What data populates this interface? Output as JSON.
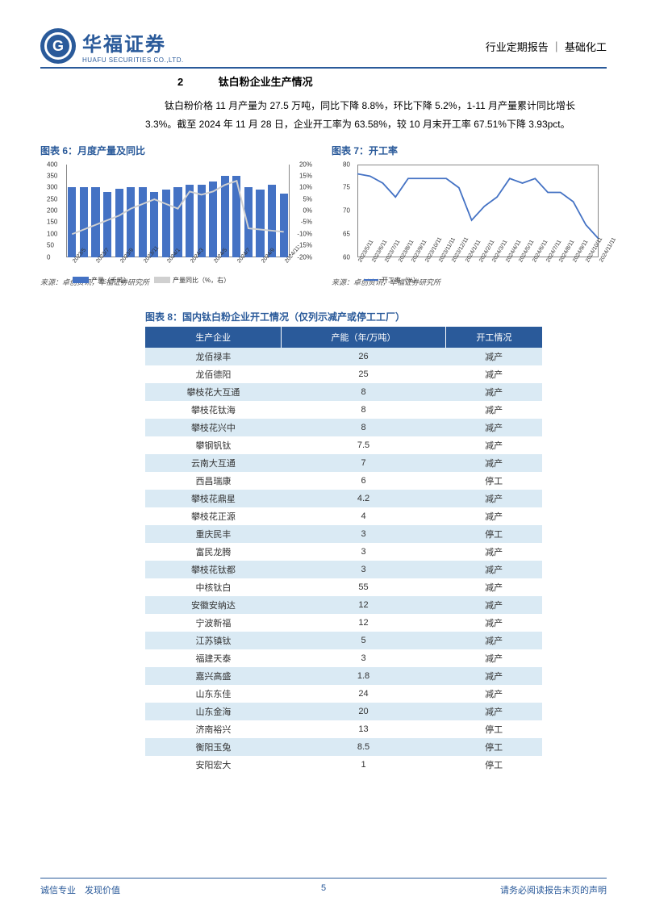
{
  "header": {
    "logo_cn": "华福证券",
    "logo_en": "HUAFU SECURITIES CO.,LTD.",
    "right_text": "行业定期报告 ｜ 基础化工"
  },
  "section": {
    "num": "2",
    "title": "钛白粉企业生产情况"
  },
  "paragraph": "钛白粉价格 11 月产量为 27.5 万吨，同比下降 8.8%，环比下降 5.2%，1-11 月产量累计同比增长 3.3%。截至 2024 年 11 月 28 日，企业开工率为 63.58%，较 10 月末开工率 67.51%下降 3.93pct。",
  "chart6": {
    "title": "图表 6：月度产量及同比",
    "source": "来源：卓创资讯，华福证券研究所",
    "type": "bar+line",
    "bar_color": "#4472c4",
    "line_color": "#d0d0d0",
    "background": "#ffffff",
    "yleft": {
      "min": 0,
      "max": 400,
      "step": 50,
      "ticks": [
        "0",
        "50",
        "100",
        "150",
        "200",
        "250",
        "300",
        "350",
        "400"
      ]
    },
    "yright": {
      "min": -20,
      "max": 20,
      "step": 5,
      "ticks": [
        "-20%",
        "-15%",
        "-10%",
        "-5%",
        "0%",
        "5%",
        "10%",
        "15%",
        "20%"
      ]
    },
    "x_labels": [
      "2023/5",
      "2023/7",
      "2023/9",
      "2023/11",
      "2024/1",
      "2024/3",
      "2024/5",
      "2024/7",
      "2024/9",
      "2024/11"
    ],
    "bars": [
      300,
      300,
      300,
      280,
      295,
      300,
      300,
      280,
      290,
      300,
      310,
      310,
      325,
      350,
      350,
      300,
      290,
      310,
      275
    ],
    "legend": {
      "bar": "产量（千吨）",
      "line": "产量同比（%，右）"
    }
  },
  "chart7": {
    "title": "图表 7：开工率",
    "source": "来源：卓创资讯，华福证券研究所",
    "type": "line",
    "line_color": "#4472c4",
    "background": "#ffffff",
    "y": {
      "min": 60,
      "max": 80,
      "step": 5,
      "ticks": [
        "60",
        "65",
        "70",
        "75",
        "80"
      ]
    },
    "x_labels": [
      "2023/5/11",
      "2023/6/11",
      "2023/7/11",
      "2023/8/11",
      "2023/9/11",
      "2023/10/11",
      "2023/11/11",
      "2023/12/11",
      "2024/1/11",
      "2024/2/11",
      "2024/3/11",
      "2024/4/11",
      "2024/5/11",
      "2024/6/11",
      "2024/7/11",
      "2024/8/11",
      "2024/9/11",
      "2024/10/11",
      "2024/11/11"
    ],
    "values": [
      78,
      77.5,
      76,
      73,
      77,
      77,
      77,
      77,
      75,
      68,
      71,
      73,
      77,
      76,
      77,
      74,
      74,
      72,
      67,
      64
    ],
    "legend": "开工率（%）"
  },
  "table8": {
    "title": "图表 8：国内钛白粉企业开工情况（仅列示减产或停工工厂）",
    "header_bg": "#2a5a9a",
    "header_fg": "#ffffff",
    "row_odd_bg": "#daeaf4",
    "row_even_bg": "#ffffff",
    "columns": [
      "生产企业",
      "产能（年/万吨）",
      "开工情况"
    ],
    "rows": [
      [
        "龙佰禄丰",
        "26",
        "减产"
      ],
      [
        "龙佰德阳",
        "25",
        "减产"
      ],
      [
        "攀枝花大互通",
        "8",
        "减产"
      ],
      [
        "攀枝花钛海",
        "8",
        "减产"
      ],
      [
        "攀枝花兴中",
        "8",
        "减产"
      ],
      [
        "攀钢钒钛",
        "7.5",
        "减产"
      ],
      [
        "云南大互通",
        "7",
        "减产"
      ],
      [
        "西昌瑞康",
        "6",
        "停工"
      ],
      [
        "攀枝花鼎星",
        "4.2",
        "减产"
      ],
      [
        "攀枝花正源",
        "4",
        "减产"
      ],
      [
        "重庆民丰",
        "3",
        "停工"
      ],
      [
        "富民龙腾",
        "3",
        "减产"
      ],
      [
        "攀枝花钛都",
        "3",
        "减产"
      ],
      [
        "中核钛白",
        "55",
        "减产"
      ],
      [
        "安徽安纳达",
        "12",
        "减产"
      ],
      [
        "宁波新福",
        "12",
        "减产"
      ],
      [
        "江苏镇钛",
        "5",
        "减产"
      ],
      [
        "福建天泰",
        "3",
        "减产"
      ],
      [
        "嘉兴高盛",
        "1.8",
        "减产"
      ],
      [
        "山东东佳",
        "24",
        "减产"
      ],
      [
        "山东金海",
        "20",
        "减产"
      ],
      [
        "济南裕兴",
        "13",
        "停工"
      ],
      [
        "衡阳玉兔",
        "8.5",
        "停工"
      ],
      [
        "安阳宏大",
        "1",
        "停工"
      ]
    ]
  },
  "footer": {
    "left": "诚信专业　发现价值",
    "page": "5",
    "right": "请务必阅读报告末页的声明"
  }
}
